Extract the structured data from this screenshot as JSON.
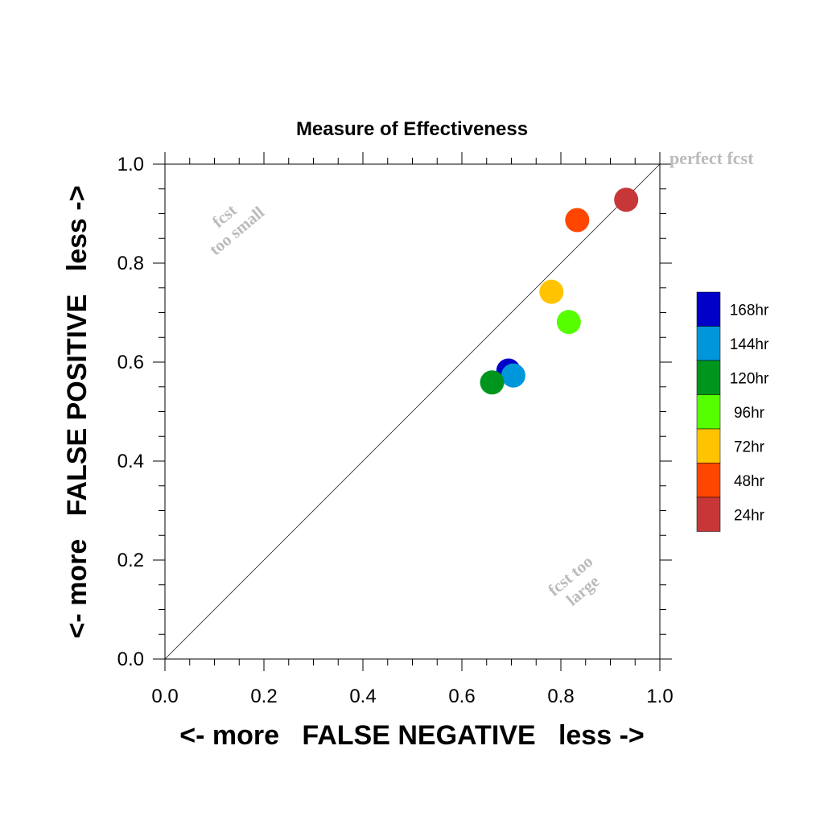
{
  "chart_data": {
    "type": "scatter",
    "title": "Measure of Effectiveness",
    "xlabel": "<- more   FALSE NEGATIVE   less ->",
    "ylabel": "<- more   FALSE POSITIVE   less ->",
    "xlim": [
      0.0,
      1.0
    ],
    "ylim": [
      0.0,
      1.0
    ],
    "xticks": [
      "0.0",
      "0.2",
      "0.4",
      "0.6",
      "0.8",
      "1.0"
    ],
    "yticks": [
      "0.0",
      "0.2",
      "0.4",
      "0.6",
      "0.8",
      "1.0"
    ],
    "grid": false,
    "reference_line": {
      "from": [
        0,
        0
      ],
      "to": [
        1,
        1
      ]
    },
    "annotations": {
      "perfect": "perfect fcst",
      "small_line1": "fcst",
      "small_line2": "too small",
      "large_line1": "fcst too",
      "large_line2": "large"
    },
    "legend_position": "right",
    "series": [
      {
        "name": "168hr",
        "color": "#0000c8",
        "x": 0.694,
        "y": 0.583
      },
      {
        "name": "144hr",
        "color": "#0096dc",
        "x": 0.704,
        "y": 0.573
      },
      {
        "name": "120hr",
        "color": "#00961e",
        "x": 0.661,
        "y": 0.559
      },
      {
        "name": "96hr",
        "color": "#55ff00",
        "x": 0.816,
        "y": 0.681
      },
      {
        "name": "72hr",
        "color": "#ffc300",
        "x": 0.781,
        "y": 0.742
      },
      {
        "name": "48hr",
        "color": "#ff4600",
        "x": 0.833,
        "y": 0.887
      },
      {
        "name": "24hr",
        "color": "#c83737",
        "x": 0.932,
        "y": 0.928
      }
    ]
  }
}
